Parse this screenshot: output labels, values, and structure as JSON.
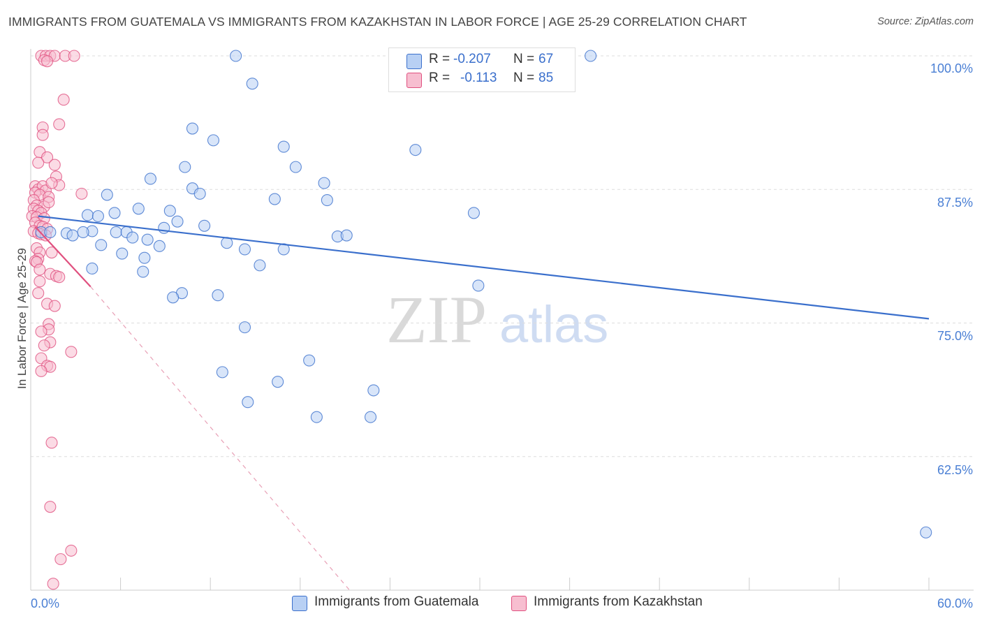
{
  "title": "IMMIGRANTS FROM GUATEMALA VS IMMIGRANTS FROM KAZAKHSTAN IN LABOR FORCE | AGE 25-29 CORRELATION CHART",
  "source": "Source: ZipAtlas.com",
  "watermark": {
    "zip": "ZIP",
    "atlas": "atlas"
  },
  "colors": {
    "blue": "#3a6fcc",
    "blue_fill": "#b8d0f4",
    "pink": "#e0507f",
    "pink_fill": "#f7bed0",
    "grid": "#dddddd"
  },
  "legend": {
    "rows": [
      {
        "r_label": "R =",
        "r_value": "-0.207",
        "n_label": "N =",
        "n_value": "67"
      },
      {
        "r_label": "R =",
        "r_value": "-0.113",
        "n_label": "N =",
        "n_value": "85"
      }
    ]
  },
  "chart_data": {
    "type": "scatter",
    "title": "IMMIGRANTS FROM GUATEMALA VS IMMIGRANTS FROM KAZAKHSTAN IN LABOR FORCE | AGE 25-29 CORRELATION CHART",
    "xlabel": "",
    "ylabel": "In Labor Force | Age 25-29",
    "xlim": [
      0,
      60
    ],
    "ylim": [
      50,
      100
    ],
    "x_tick_labels": [
      "0.0%",
      "60.0%"
    ],
    "y_ticks": [
      62.5,
      75.0,
      87.5,
      100.0
    ],
    "y_tick_labels": [
      "62.5%",
      "75.0%",
      "87.5%",
      "100.0%"
    ],
    "legend_position": "top-center",
    "grid": true,
    "series": [
      {
        "name": "Immigrants from Guatemala",
        "color": "#3a6fcc",
        "R": -0.207,
        "N": 67,
        "trend": {
          "x": [
            0.5,
            60
          ],
          "y": [
            85.0,
            75.4
          ]
        },
        "points": [
          [
            13.7,
            100.0
          ],
          [
            37.4,
            100.0
          ],
          [
            14.8,
            97.4
          ],
          [
            10.8,
            93.2
          ],
          [
            12.2,
            92.1
          ],
          [
            16.9,
            91.5
          ],
          [
            25.7,
            91.2
          ],
          [
            10.3,
            89.6
          ],
          [
            17.7,
            89.6
          ],
          [
            8.0,
            88.5
          ],
          [
            19.6,
            88.1
          ],
          [
            10.8,
            87.6
          ],
          [
            11.3,
            87.1
          ],
          [
            5.1,
            87.0
          ],
          [
            16.3,
            86.6
          ],
          [
            19.8,
            86.5
          ],
          [
            7.2,
            85.7
          ],
          [
            9.3,
            85.5
          ],
          [
            5.6,
            85.3
          ],
          [
            29.6,
            85.3
          ],
          [
            3.8,
            85.1
          ],
          [
            4.5,
            85.0
          ],
          [
            9.8,
            84.5
          ],
          [
            11.6,
            84.1
          ],
          [
            8.9,
            83.9
          ],
          [
            4.1,
            83.6
          ],
          [
            5.7,
            83.5
          ],
          [
            6.4,
            83.5
          ],
          [
            2.4,
            83.4
          ],
          [
            2.8,
            83.2
          ],
          [
            0.7,
            83.5
          ],
          [
            1.3,
            83.5
          ],
          [
            3.5,
            83.5
          ],
          [
            20.5,
            83.1
          ],
          [
            21.1,
            83.2
          ],
          [
            6.8,
            83.0
          ],
          [
            7.8,
            82.8
          ],
          [
            13.1,
            82.5
          ],
          [
            4.7,
            82.3
          ],
          [
            8.6,
            82.2
          ],
          [
            14.3,
            81.9
          ],
          [
            16.9,
            81.9
          ],
          [
            6.1,
            81.5
          ],
          [
            7.6,
            81.1
          ],
          [
            15.3,
            80.4
          ],
          [
            4.1,
            80.1
          ],
          [
            7.5,
            79.8
          ],
          [
            29.9,
            78.5
          ],
          [
            10.1,
            77.8
          ],
          [
            9.5,
            77.4
          ],
          [
            12.5,
            77.6
          ],
          [
            14.3,
            74.6
          ],
          [
            18.6,
            71.5
          ],
          [
            12.8,
            70.4
          ],
          [
            16.5,
            69.5
          ],
          [
            22.9,
            68.7
          ],
          [
            14.5,
            67.6
          ],
          [
            19.1,
            66.2
          ],
          [
            22.7,
            66.2
          ],
          [
            59.8,
            55.4
          ]
        ]
      },
      {
        "name": "Immigrants from Kazakhstan",
        "color": "#e0507f",
        "R": -0.113,
        "N": 85,
        "trend_solid": {
          "x": [
            0.3,
            4.0
          ],
          "y": [
            84.0,
            78.4
          ]
        },
        "trend_dashed": {
          "x": [
            4.0,
            21.3
          ],
          "y": [
            78.4,
            50.0
          ]
        },
        "points": [
          [
            0.7,
            100.0
          ],
          [
            1.0,
            100.0
          ],
          [
            1.3,
            100.0
          ],
          [
            1.6,
            100.0
          ],
          [
            2.3,
            100.0
          ],
          [
            2.9,
            100.0
          ],
          [
            0.9,
            99.6
          ],
          [
            1.1,
            99.5
          ],
          [
            2.2,
            95.9
          ],
          [
            1.9,
            93.6
          ],
          [
            0.8,
            93.3
          ],
          [
            0.8,
            92.6
          ],
          [
            0.6,
            91.0
          ],
          [
            1.1,
            90.5
          ],
          [
            0.5,
            90.0
          ],
          [
            1.6,
            89.8
          ],
          [
            1.7,
            88.7
          ],
          [
            0.3,
            87.8
          ],
          [
            0.5,
            87.5
          ],
          [
            0.8,
            87.8
          ],
          [
            1.0,
            87.4
          ],
          [
            1.9,
            87.9
          ],
          [
            1.4,
            88.1
          ],
          [
            0.3,
            87.2
          ],
          [
            0.6,
            87.0
          ],
          [
            1.2,
            86.8
          ],
          [
            3.4,
            87.1
          ],
          [
            0.2,
            86.5
          ],
          [
            0.4,
            86.0
          ],
          [
            0.9,
            85.9
          ],
          [
            1.2,
            86.3
          ],
          [
            0.2,
            85.7
          ],
          [
            0.5,
            85.5
          ],
          [
            0.7,
            85.3
          ],
          [
            0.1,
            85.0
          ],
          [
            0.4,
            84.9
          ],
          [
            0.9,
            84.8
          ],
          [
            0.3,
            84.4
          ],
          [
            0.6,
            84.1
          ],
          [
            0.8,
            84.0
          ],
          [
            1.1,
            83.8
          ],
          [
            0.2,
            83.6
          ],
          [
            0.5,
            83.4
          ],
          [
            0.7,
            83.3
          ],
          [
            1.0,
            83.2
          ],
          [
            0.4,
            82.0
          ],
          [
            0.6,
            81.6
          ],
          [
            1.4,
            81.6
          ],
          [
            0.5,
            81.0
          ],
          [
            0.3,
            80.8
          ],
          [
            0.4,
            80.7
          ],
          [
            0.6,
            80.0
          ],
          [
            1.3,
            79.6
          ],
          [
            1.7,
            79.4
          ],
          [
            1.9,
            79.3
          ],
          [
            0.6,
            78.9
          ],
          [
            0.5,
            77.8
          ],
          [
            1.1,
            76.8
          ],
          [
            1.6,
            76.6
          ],
          [
            1.2,
            74.9
          ],
          [
            1.2,
            74.4
          ],
          [
            0.7,
            74.2
          ],
          [
            1.3,
            73.2
          ],
          [
            0.9,
            72.9
          ],
          [
            2.7,
            72.3
          ],
          [
            0.7,
            71.7
          ],
          [
            1.1,
            71.0
          ],
          [
            1.3,
            70.9
          ],
          [
            0.7,
            70.5
          ],
          [
            1.4,
            63.8
          ],
          [
            1.3,
            57.8
          ],
          [
            2.7,
            53.7
          ],
          [
            2.0,
            52.9
          ],
          [
            1.5,
            50.6
          ]
        ]
      }
    ]
  }
}
